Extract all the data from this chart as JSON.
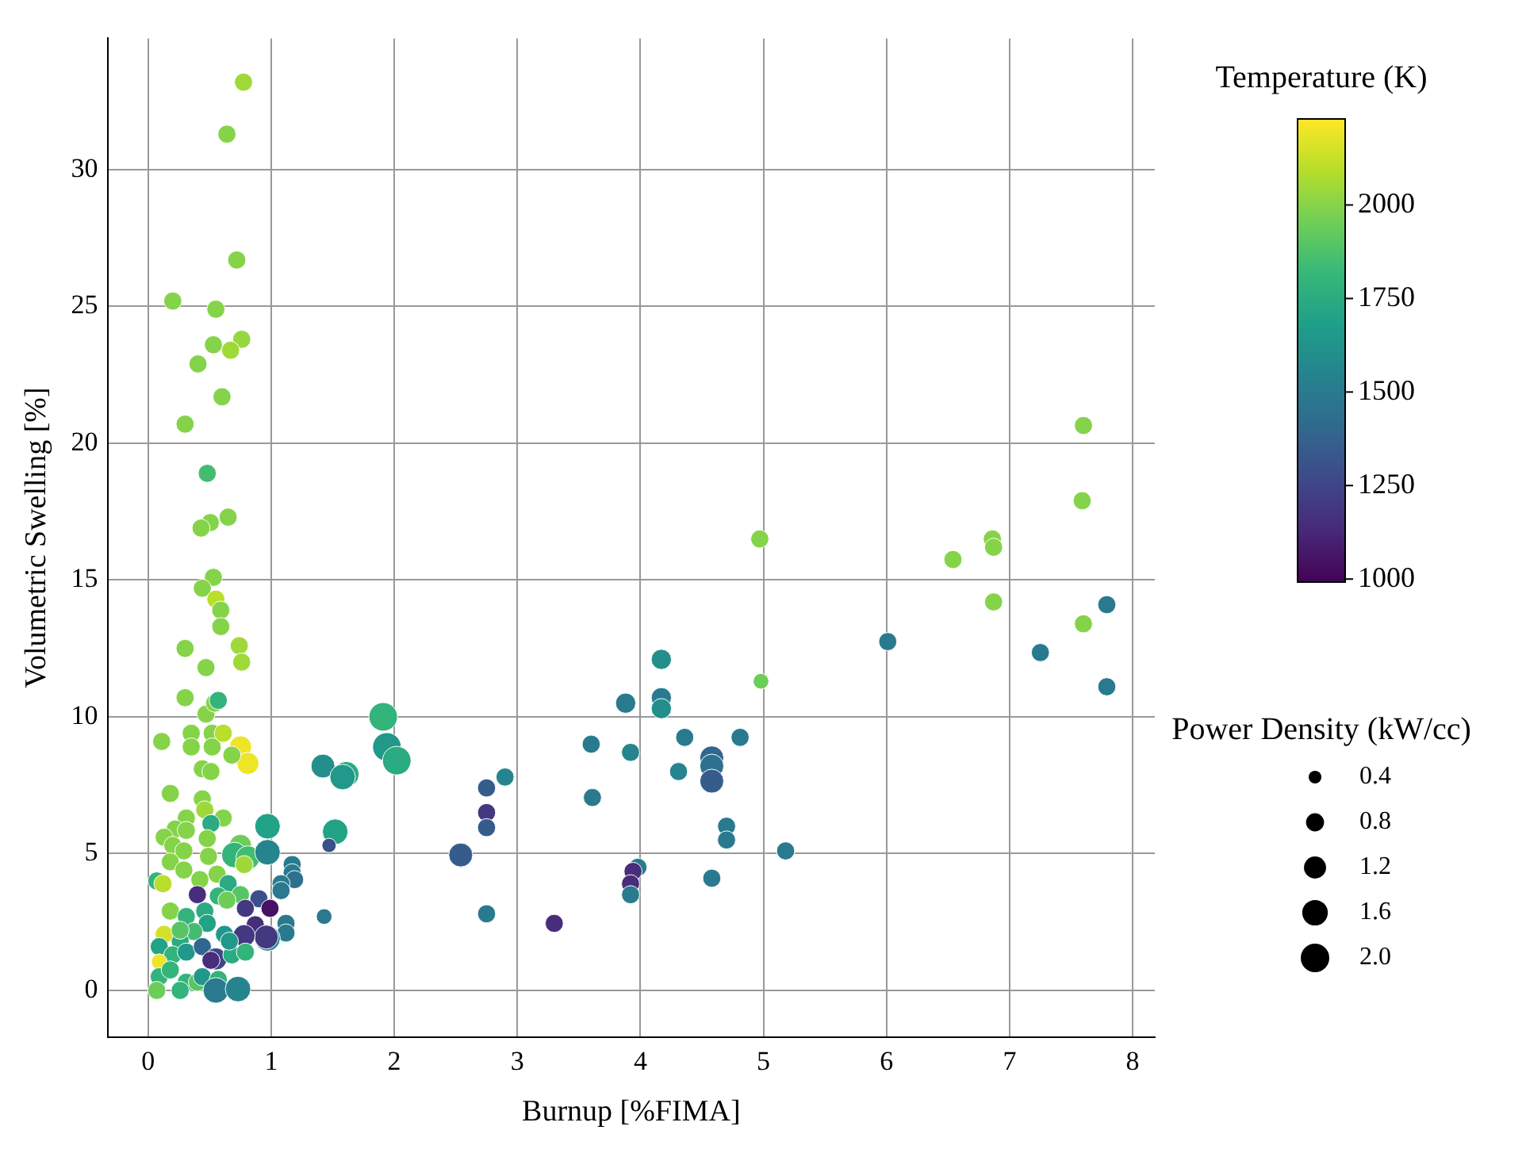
{
  "chart_data": {
    "type": "bubble",
    "xlabel": "Burnup [%FIMA]",
    "ylabel": "Volumetric Swelling [%]",
    "clabel": "Temperature (K)",
    "legend_title": "Power Density (kW/cc)",
    "xlim": [
      -0.33,
      8.18
    ],
    "ylim": [
      -1.7,
      34.8
    ],
    "xticks": [
      0,
      1,
      2,
      3,
      4,
      5,
      6,
      7,
      8
    ],
    "yticks": [
      0,
      5,
      10,
      15,
      20,
      25,
      30
    ],
    "clim": [
      992,
      2230
    ],
    "cticks": [
      1000,
      1250,
      1500,
      1750,
      2000
    ],
    "size_legend": [
      {
        "value": 0.4,
        "label": "0.4"
      },
      {
        "value": 0.8,
        "label": "0.8"
      },
      {
        "value": 1.2,
        "label": "1.2"
      },
      {
        "value": 1.6,
        "label": "1.6"
      },
      {
        "value": 2.0,
        "label": "2.0"
      }
    ],
    "grid": true,
    "marker": "circle",
    "x": [
      0.775,
      0.64,
      0.72,
      0.2,
      0.55,
      0.76,
      0.53,
      0.67,
      0.405,
      0.6,
      0.3,
      0.48,
      0.65,
      0.505,
      0.43,
      0.53,
      0.44,
      0.55,
      0.59,
      0.59,
      0.3,
      0.74,
      0.76,
      0.47,
      0.3,
      0.47,
      0.54,
      0.57,
      0.11,
      0.35,
      0.35,
      0.52,
      0.52,
      0.61,
      0.75,
      0.81,
      0.68,
      0.44,
      0.51,
      0.18,
      0.44,
      0.46,
      0.31,
      0.61,
      0.51,
      0.22,
      0.13,
      0.31,
      0.48,
      0.2,
      0.75,
      0.7,
      0.81,
      0.78,
      0.97,
      0.97,
      0.29,
      0.49,
      0.18,
      0.29,
      0.56,
      0.07,
      0.12,
      0.42,
      0.65,
      1.17,
      1.17,
      1.19,
      1.08,
      1.08,
      0.4,
      0.75,
      0.9,
      0.99,
      0.57,
      0.64,
      0.18,
      0.31,
      0.46,
      0.79,
      1.43,
      1.12,
      1.12,
      0.87,
      0.97,
      0.96,
      0.78,
      0.62,
      0.48,
      0.37,
      0.26,
      0.13,
      0.09,
      0.2,
      0.31,
      0.44,
      0.55,
      0.68,
      0.79,
      0.09,
      0.09,
      0.18,
      0.31,
      0.4,
      0.44,
      0.57,
      0.07,
      0.26,
      0.55,
      0.73,
      0.51,
      0.66,
      0.26,
      1.91,
      1.94,
      2.02,
      1.42,
      1.61,
      1.58,
      1.52,
      1.47,
      4.17,
      3.88,
      4.17,
      4.17,
      4.98,
      3.6,
      3.92,
      4.36,
      4.81,
      4.58,
      4.58,
      4.58,
      4.31,
      2.9,
      2.75,
      2.75,
      2.75,
      3.61,
      2.54,
      4.7,
      4.7,
      5.18,
      3.98,
      3.94,
      3.92,
      3.92,
      4.58,
      3.3,
      2.75,
      7.6,
      7.59,
      4.97,
      6.86,
      6.87,
      6.54,
      6.87,
      7.79,
      7.6,
      6.01,
      7.25,
      7.79
    ],
    "values": [
      33.2,
      31.3,
      26.7,
      25.2,
      24.9,
      23.8,
      23.6,
      23.4,
      22.9,
      21.7,
      20.7,
      18.9,
      17.3,
      17.1,
      16.9,
      15.1,
      14.7,
      14.3,
      13.9,
      13.3,
      12.5,
      12.6,
      12.0,
      11.8,
      10.7,
      10.1,
      10.5,
      10.6,
      9.1,
      9.4,
      8.9,
      9.4,
      8.9,
      9.4,
      8.9,
      8.3,
      8.6,
      8.1,
      8.0,
      7.2,
      7.0,
      6.6,
      6.3,
      6.3,
      6.1,
      5.9,
      5.6,
      5.85,
      5.55,
      5.3,
      5.3,
      4.95,
      4.85,
      4.6,
      6.0,
      5.05,
      5.1,
      4.9,
      4.7,
      4.4,
      4.25,
      4.0,
      3.9,
      4.05,
      3.9,
      4.6,
      4.3,
      4.05,
      3.9,
      3.65,
      3.5,
      3.5,
      3.35,
      3.0,
      3.45,
      3.3,
      2.9,
      2.7,
      2.9,
      3.0,
      2.7,
      2.45,
      2.1,
      2.4,
      1.9,
      1.95,
      2.0,
      2.05,
      2.45,
      2.15,
      1.8,
      2.05,
      1.6,
      1.3,
      1.4,
      1.6,
      1.15,
      1.3,
      1.4,
      1.05,
      0.5,
      0.75,
      0.3,
      0.3,
      0.5,
      0.4,
      0.0,
      0.0,
      0.0,
      0.05,
      1.1,
      1.8,
      2.2,
      10.0,
      8.9,
      8.4,
      8.2,
      7.9,
      7.8,
      5.8,
      5.3,
      12.1,
      10.5,
      10.7,
      10.3,
      11.3,
      9.0,
      8.7,
      9.25,
      9.25,
      8.5,
      8.2,
      7.65,
      8.0,
      7.8,
      7.4,
      6.5,
      5.95,
      7.05,
      4.95,
      6.0,
      5.5,
      5.1,
      4.5,
      4.35,
      3.9,
      3.5,
      4.1,
      2.45,
      2.8,
      20.65,
      17.9,
      16.5,
      16.5,
      16.2,
      15.75,
      14.2,
      14.1,
      13.4,
      12.75,
      12.35,
      11.1
    ],
    "cvalues": [
      2050,
      2000,
      2000,
      2000,
      2000,
      2030,
      2000,
      2050,
      2000,
      2000,
      2000,
      1850,
      2000,
      2000,
      2000,
      2000,
      2000,
      2100,
      2000,
      2000,
      2000,
      2050,
      2050,
      2000,
      2000,
      2000,
      2000,
      1800,
      2000,
      2000,
      2000,
      2000,
      2000,
      2100,
      2200,
      2200,
      2000,
      2000,
      2000,
      2000,
      2000,
      2050,
      2000,
      2000,
      1750,
      2000,
      2000,
      2000,
      2000,
      2000,
      1950,
      1800,
      1850,
      2050,
      1700,
      1550,
      2000,
      2000,
      2000,
      2000,
      2000,
      1800,
      2100,
      2000,
      1750,
      1500,
      1500,
      1450,
      1500,
      1500,
      1150,
      1900,
      1300,
      1050,
      1800,
      1950,
      2000,
      1800,
      1750,
      1200,
      1500,
      1500,
      1500,
      1150,
      1600,
      1200,
      1200,
      1650,
      1700,
      1850,
      1750,
      2150,
      1700,
      1800,
      1650,
      1400,
      1250,
      1750,
      1800,
      2200,
      1800,
      1800,
      1800,
      1900,
      1650,
      1800,
      1950,
      1800,
      1500,
      1550,
      1150,
      1650,
      1900,
      1800,
      1650,
      1750,
      1600,
      1750,
      1650,
      1700,
      1300,
      1600,
      1500,
      1500,
      1600,
      1950,
      1500,
      1550,
      1500,
      1500,
      1400,
      1450,
      1350,
      1550,
      1550,
      1350,
      1200,
      1350,
      1500,
      1350,
      1500,
      1500,
      1500,
      1500,
      1150,
      1150,
      1500,
      1500,
      1150,
      1500,
      2000,
      2000,
      2000,
      2000,
      2000,
      2000,
      2000,
      1500,
      2000,
      1500,
      1500,
      1500
    ],
    "sizes": [
      0.8,
      0.8,
      0.8,
      0.8,
      0.8,
      0.8,
      0.8,
      0.8,
      0.8,
      0.8,
      0.8,
      0.8,
      0.8,
      0.8,
      0.8,
      0.8,
      0.8,
      0.8,
      0.8,
      0.8,
      0.8,
      0.8,
      0.8,
      0.8,
      0.8,
      0.8,
      0.8,
      0.8,
      0.8,
      0.8,
      0.8,
      0.8,
      0.8,
      0.8,
      1.2,
      1.2,
      0.8,
      0.8,
      0.8,
      0.8,
      0.8,
      0.8,
      0.8,
      0.8,
      0.8,
      0.8,
      0.8,
      0.8,
      0.8,
      0.8,
      1.2,
      1.6,
      1.4,
      0.8,
      1.6,
      1.6,
      0.8,
      0.8,
      0.8,
      0.8,
      0.8,
      0.8,
      0.8,
      0.8,
      0.8,
      0.8,
      0.8,
      0.8,
      0.8,
      0.8,
      0.8,
      0.8,
      0.8,
      0.8,
      0.8,
      0.8,
      0.8,
      0.8,
      0.8,
      0.8,
      0.6,
      0.8,
      0.8,
      0.8,
      1.6,
      1.4,
      1.2,
      0.8,
      0.8,
      0.8,
      0.8,
      0.8,
      0.8,
      0.8,
      0.8,
      0.8,
      1.2,
      0.8,
      0.8,
      0.6,
      0.8,
      0.8,
      0.8,
      0.8,
      0.8,
      0.8,
      0.8,
      0.8,
      1.6,
      1.6,
      0.8,
      0.8,
      0.8,
      2.0,
      2.0,
      2.0,
      1.4,
      1.6,
      1.6,
      1.6,
      0.5,
      1.0,
      1.0,
      1.0,
      1.0,
      0.6,
      0.8,
      0.8,
      0.8,
      0.8,
      1.4,
      1.4,
      1.4,
      0.8,
      0.8,
      0.8,
      0.8,
      0.8,
      0.8,
      1.4,
      0.8,
      0.8,
      0.8,
      0.8,
      0.8,
      0.8,
      0.8,
      0.8,
      0.8,
      0.8,
      0.8,
      0.8,
      0.8,
      0.8,
      0.8,
      0.8,
      0.8,
      0.8,
      0.8,
      0.8,
      0.8,
      0.8
    ]
  }
}
